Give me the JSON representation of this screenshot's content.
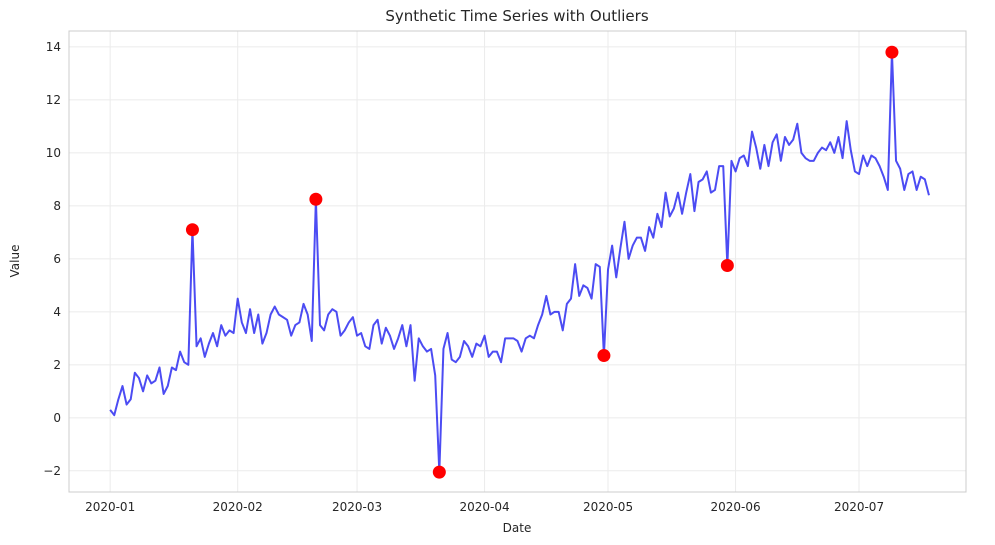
{
  "chart_data": {
    "type": "line",
    "title": "Synthetic Time Series with Outliers",
    "xlabel": "Date",
    "ylabel": "Value",
    "xlim": [
      "2019-12-22",
      "2020-07-27"
    ],
    "ylim": [
      -2.8,
      14.6
    ],
    "x_ticks": [
      "2020-01",
      "2020-02",
      "2020-03",
      "2020-04",
      "2020-05",
      "2020-06",
      "2020-07"
    ],
    "y_ticks": [
      -2,
      0,
      2,
      4,
      6,
      8,
      10,
      12,
      14
    ],
    "grid": true,
    "line_color": "#0000ee",
    "outlier_color": "#ff0000",
    "series": [
      {
        "x_start": "2020-01-01",
        "frequency": "daily",
        "values": [
          0.3,
          0.1,
          0.7,
          1.2,
          0.5,
          0.7,
          1.7,
          1.5,
          1.0,
          1.6,
          1.3,
          1.4,
          1.9,
          0.9,
          1.2,
          1.9,
          1.8,
          2.5,
          2.1,
          2.0,
          7.1,
          2.7,
          3.0,
          2.3,
          2.8,
          3.2,
          2.7,
          3.5,
          3.1,
          3.3,
          3.2,
          4.5,
          3.6,
          3.2,
          4.1,
          3.2,
          3.9,
          2.8,
          3.2,
          3.9,
          4.2,
          3.9,
          3.8,
          3.7,
          3.1,
          3.5,
          3.6,
          4.3,
          3.9,
          2.9,
          8.25,
          3.5,
          3.3,
          3.9,
          4.1,
          4.0,
          3.1,
          3.3,
          3.6,
          3.8,
          3.1,
          3.2,
          2.7,
          2.6,
          3.5,
          3.7,
          2.8,
          3.4,
          3.1,
          2.6,
          3.0,
          3.5,
          2.7,
          3.5,
          1.4,
          3.0,
          2.7,
          2.5,
          2.6,
          1.6,
          -2.05,
          2.6,
          3.2,
          2.2,
          2.1,
          2.3,
          2.9,
          2.7,
          2.3,
          2.8,
          2.7,
          3.1,
          2.3,
          2.5,
          2.5,
          2.1,
          3.0,
          3.0,
          3.0,
          2.9,
          2.5,
          3.0,
          3.1,
          3.0,
          3.5,
          3.9,
          4.6,
          3.9,
          4.0,
          4.0,
          3.3,
          4.3,
          4.5,
          5.8,
          4.6,
          5.0,
          4.9,
          4.5,
          5.8,
          5.7,
          2.35,
          5.6,
          6.5,
          5.3,
          6.4,
          7.4,
          6.0,
          6.5,
          6.8,
          6.8,
          6.3,
          7.2,
          6.8,
          7.7,
          7.2,
          8.5,
          7.6,
          7.9,
          8.5,
          7.7,
          8.5,
          9.2,
          7.8,
          8.9,
          9.0,
          9.3,
          8.5,
          8.6,
          9.5,
          9.5,
          5.75,
          9.7,
          9.3,
          9.8,
          9.9,
          9.5,
          10.8,
          10.2,
          9.4,
          10.3,
          9.5,
          10.4,
          10.7,
          9.7,
          10.6,
          10.3,
          10.5,
          11.1,
          10.0,
          9.8,
          9.7,
          9.7,
          10.0,
          10.2,
          10.1,
          10.4,
          10.0,
          10.6,
          9.8,
          11.2,
          10.1,
          9.3,
          9.2,
          9.9,
          9.5,
          9.9,
          9.8,
          9.5,
          9.1,
          8.6,
          13.8,
          9.7,
          9.4,
          8.6,
          9.2,
          9.3,
          8.6,
          9.1,
          9.0,
          8.4
        ]
      }
    ],
    "outliers": [
      {
        "x": "2020-01-21",
        "y": 7.1
      },
      {
        "x": "2020-02-20",
        "y": 8.25
      },
      {
        "x": "2020-03-21",
        "y": -2.05
      },
      {
        "x": "2020-04-30",
        "y": 2.35
      },
      {
        "x": "2020-05-30",
        "y": 5.75
      },
      {
        "x": "2020-07-09",
        "y": 13.8
      }
    ]
  }
}
